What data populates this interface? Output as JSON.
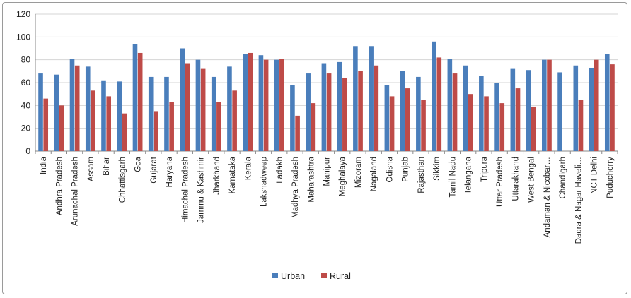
{
  "chart_data": {
    "type": "bar",
    "title": "",
    "xlabel": "",
    "ylabel": "",
    "ylim": [
      0,
      120
    ],
    "yticks": [
      0,
      20,
      40,
      60,
      80,
      100,
      120
    ],
    "grid": true,
    "legend": "bottom",
    "categories": [
      "India",
      "Andhra Pradesh",
      "Arunachal Pradesh",
      "Assam",
      "Bihar",
      "Chhattisgarh",
      "Goa",
      "Gujarat",
      "Haryana",
      "Himachal Pradesh",
      "Jammu & Kashmir",
      "Jharkhand",
      "Karnataka",
      "Kerala",
      "Lakshadweep",
      "Ladakh",
      "Madhya Pradesh",
      "Maharashtra",
      "Manipur",
      "Meghalaya",
      "Mizoram",
      "Nagaland",
      "Odisha",
      "Punjab",
      "Rajasthan",
      "Sikkim",
      "Tamil Nadu",
      "Telangana",
      "Tripura",
      "Uttar Pradesh",
      "Uttarakhand",
      "West Bengal",
      "Andaman & Nicobar…",
      "Chandigarh",
      "Dadra & Nagar Haveli…",
      "NCT Delhi",
      "Puducherry"
    ],
    "series": [
      {
        "name": "Urban",
        "color": "#4a7ebb",
        "values": [
          68,
          67,
          81,
          74,
          62,
          61,
          94,
          65,
          65,
          90,
          80,
          65,
          74,
          85,
          84,
          80,
          58,
          68,
          77,
          78,
          92,
          92,
          58,
          70,
          65,
          96,
          81,
          75,
          66,
          60,
          72,
          71,
          80,
          69,
          75,
          73,
          85
        ]
      },
      {
        "name": "Rural",
        "color": "#be4b48",
        "values": [
          46,
          40,
          75,
          53,
          48,
          33,
          86,
          35,
          43,
          77,
          72,
          43,
          53,
          86,
          80,
          81,
          31,
          42,
          68,
          64,
          70,
          75,
          48,
          55,
          45,
          82,
          68,
          50,
          48,
          42,
          55,
          39,
          80,
          null,
          45,
          80,
          76
        ]
      }
    ]
  }
}
